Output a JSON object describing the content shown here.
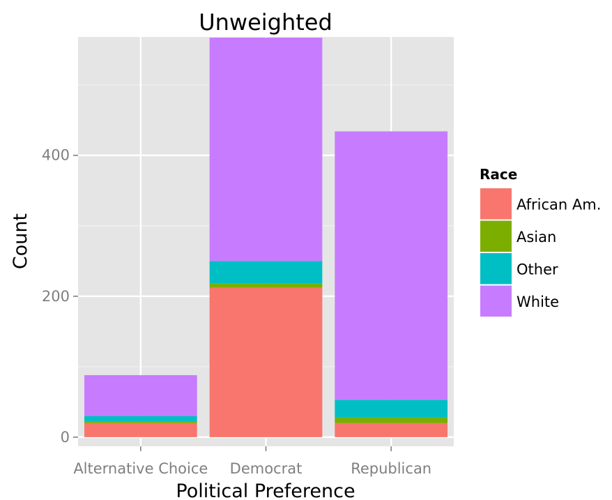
{
  "chart_data": {
    "type": "bar",
    "stacked": true,
    "title": "Unweighted",
    "xlabel": "Political Preference",
    "ylabel": "Count",
    "categories": [
      "Alternative Choice",
      "Democrat",
      "Republican"
    ],
    "series": [
      {
        "name": "African Am.",
        "color": "#F8766D",
        "values": [
          20,
          212,
          20
        ]
      },
      {
        "name": "Asian",
        "color": "#7CAE00",
        "values": [
          2,
          6,
          8
        ]
      },
      {
        "name": "Other",
        "color": "#00BFC4",
        "values": [
          8,
          32,
          25
        ]
      },
      {
        "name": "White",
        "color": "#C77CFF",
        "values": [
          58,
          317,
          381
        ]
      }
    ],
    "y_ticks": [
      0,
      200,
      400
    ],
    "ylim": [
      -13,
      568
    ],
    "legend": {
      "title": "Race",
      "position": "right"
    },
    "grid": true,
    "panel_color": "#E5E5E5",
    "grid_major_color": "#FFFFFF",
    "grid_minor_color": "#F2F2F2"
  }
}
